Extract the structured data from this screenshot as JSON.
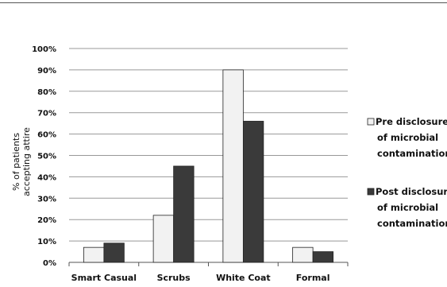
{
  "chart_data": {
    "type": "bar",
    "categories": [
      "Smart Casual",
      "Scrubs",
      "White Coat",
      "Formal"
    ],
    "series": [
      {
        "name": "Pre disclosure of microbial contamination",
        "values": [
          7,
          22,
          90,
          7
        ],
        "color": "#f2f2f2"
      },
      {
        "name": "Post disclosure of microbial contamination",
        "values": [
          9,
          45,
          66,
          5
        ],
        "color": "#3a3a3a"
      }
    ],
    "ylabel": [
      "% of patients",
      "accepting attire"
    ],
    "ylim": [
      0,
      100
    ],
    "yticks": [
      "0%",
      "10%",
      "20%",
      "30%",
      "40%",
      "50%",
      "60%",
      "70%",
      "80%",
      "90%",
      "100%"
    ],
    "legend": {
      "position": "right",
      "entries": [
        {
          "lines": [
            "Pre disclosure",
            "of microbial",
            "contamination"
          ]
        },
        {
          "lines": [
            "Post disclosure",
            "of microbial",
            "contamination"
          ]
        }
      ]
    },
    "grid": true,
    "grid_color": "#999999",
    "rule_color": "#555555"
  }
}
